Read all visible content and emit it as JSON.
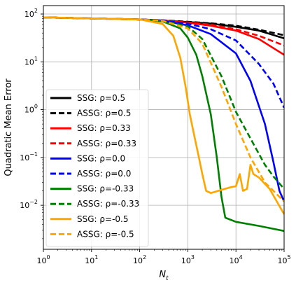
{
  "chart_data": {
    "type": "line",
    "xlabel_main": "N",
    "xlabel_sub": "t",
    "ylabel": "Quadratic Mean Error",
    "xscale": "log",
    "yscale": "log",
    "xlim": [
      1,
      100000
    ],
    "ylim": [
      0.0012,
      150
    ],
    "grid": true,
    "legend_position": "left-center",
    "x_ticks": [
      {
        "value": 1,
        "base": "10",
        "exp": "0"
      },
      {
        "value": 10,
        "base": "10",
        "exp": "1"
      },
      {
        "value": 100,
        "base": "10",
        "exp": "2"
      },
      {
        "value": 1000,
        "base": "10",
        "exp": "3"
      },
      {
        "value": 10000,
        "base": "10",
        "exp": "4"
      },
      {
        "value": 100000,
        "base": "10",
        "exp": "5"
      }
    ],
    "y_ticks": [
      {
        "value": 0.01,
        "base": "10",
        "exp": "−2"
      },
      {
        "value": 0.1,
        "base": "10",
        "exp": "−1"
      },
      {
        "value": 1,
        "base": "10",
        "exp": "0"
      },
      {
        "value": 10,
        "base": "10",
        "exp": "1"
      },
      {
        "value": 100,
        "base": "10",
        "exp": "2"
      }
    ],
    "series": [
      {
        "name": "SSG: ρ=0.5",
        "color": "#000000",
        "dash": "solid",
        "points": [
          [
            1,
            85
          ],
          [
            30,
            79
          ],
          [
            100,
            77
          ],
          [
            300,
            73
          ],
          [
            1000,
            68
          ],
          [
            3000,
            63
          ],
          [
            10000,
            54
          ],
          [
            30000,
            45
          ],
          [
            100000,
            31
          ]
        ]
      },
      {
        "name": "ASSG: ρ=0.5",
        "color": "#000000",
        "dash": "dashed",
        "points": [
          [
            1,
            85
          ],
          [
            30,
            79
          ],
          [
            100,
            77
          ],
          [
            300,
            74
          ],
          [
            1000,
            69
          ],
          [
            3000,
            64
          ],
          [
            10000,
            57
          ],
          [
            30000,
            47
          ],
          [
            100000,
            36
          ]
        ]
      },
      {
        "name": "SSG: ρ=0.33",
        "color": "#ff0000",
        "dash": "solid",
        "points": [
          [
            1,
            85
          ],
          [
            30,
            79
          ],
          [
            100,
            77
          ],
          [
            300,
            73
          ],
          [
            1000,
            66
          ],
          [
            3000,
            57
          ],
          [
            10000,
            45
          ],
          [
            30000,
            30
          ],
          [
            100000,
            14
          ]
        ]
      },
      {
        "name": "ASSG: ρ=0.33",
        "color": "#ff0000",
        "dash": "dashed",
        "points": [
          [
            1,
            85
          ],
          [
            30,
            79
          ],
          [
            100,
            77
          ],
          [
            300,
            73
          ],
          [
            1000,
            67
          ],
          [
            3000,
            60
          ],
          [
            10000,
            48
          ],
          [
            30000,
            35
          ],
          [
            100000,
            22
          ]
        ]
      },
      {
        "name": "SSG: ρ=0.0",
        "color": "#0000ff",
        "dash": "solid",
        "points": [
          [
            1,
            85
          ],
          [
            100,
            77
          ],
          [
            300,
            72
          ],
          [
            1000,
            58
          ],
          [
            3000,
            38
          ],
          [
            10000,
            15
          ],
          [
            20000,
            4
          ],
          [
            40000,
            0.5
          ],
          [
            60000,
            0.08
          ],
          [
            80000,
            0.02
          ],
          [
            100000,
            0.012
          ]
        ]
      },
      {
        "name": "ASSG: ρ=0.0",
        "color": "#0000ff",
        "dash": "dashed",
        "points": [
          [
            1,
            85
          ],
          [
            100,
            77
          ],
          [
            300,
            73
          ],
          [
            1000,
            63
          ],
          [
            3000,
            48
          ],
          [
            10000,
            28
          ],
          [
            30000,
            9
          ],
          [
            60000,
            3.5
          ],
          [
            100000,
            1.1
          ]
        ]
      },
      {
        "name": "SSG: ρ=-0.33",
        "color": "#008000",
        "dash": "solid",
        "points": [
          [
            1,
            85
          ],
          [
            100,
            77
          ],
          [
            300,
            70
          ],
          [
            700,
            50
          ],
          [
            1000,
            32
          ],
          [
            1500,
            14
          ],
          [
            2000,
            5
          ],
          [
            3000,
            0.8
          ],
          [
            4000,
            0.1
          ],
          [
            5000,
            0.015
          ],
          [
            6000,
            0.0055
          ],
          [
            10000,
            0.0045
          ],
          [
            30000,
            0.0037
          ],
          [
            100000,
            0.0029
          ]
        ]
      },
      {
        "name": "ASSG: ρ=-0.33",
        "color": "#008000",
        "dash": "dashed",
        "points": [
          [
            1,
            85
          ],
          [
            100,
            77
          ],
          [
            300,
            72
          ],
          [
            1000,
            55
          ],
          [
            2000,
            30
          ],
          [
            5000,
            5
          ],
          [
            10000,
            0.9
          ],
          [
            20000,
            0.25
          ],
          [
            40000,
            0.07
          ],
          [
            60000,
            0.04
          ],
          [
            100000,
            0.022
          ]
        ]
      },
      {
        "name": "SSG: ρ=-0.5",
        "color": "#ffa500",
        "dash": "solid",
        "points": [
          [
            1,
            85
          ],
          [
            100,
            77
          ],
          [
            300,
            62
          ],
          [
            500,
            35
          ],
          [
            700,
            12
          ],
          [
            900,
            3
          ],
          [
            1100,
            0.8
          ],
          [
            1400,
            0.25
          ],
          [
            1700,
            0.1
          ],
          [
            2000,
            0.045
          ],
          [
            2400,
            0.02
          ],
          [
            3000,
            0.018
          ],
          [
            5000,
            0.021
          ],
          [
            8000,
            0.024
          ],
          [
            10000,
            0.025
          ],
          [
            12000,
            0.045
          ],
          [
            14000,
            0.02
          ],
          [
            17000,
            0.022
          ],
          [
            20000,
            0.07
          ],
          [
            23000,
            0.045
          ],
          [
            30000,
            0.038
          ],
          [
            50000,
            0.022
          ],
          [
            100000,
            0.0065
          ]
        ]
      },
      {
        "name": "ASSG: ρ=-0.5",
        "color": "#ffa500",
        "dash": "dashed",
        "points": [
          [
            1,
            85
          ],
          [
            100,
            77
          ],
          [
            300,
            72
          ],
          [
            1000,
            50
          ],
          [
            2000,
            24
          ],
          [
            5000,
            3
          ],
          [
            10000,
            0.5
          ],
          [
            20000,
            0.1
          ],
          [
            40000,
            0.03
          ],
          [
            100000,
            0.012
          ]
        ]
      }
    ]
  }
}
